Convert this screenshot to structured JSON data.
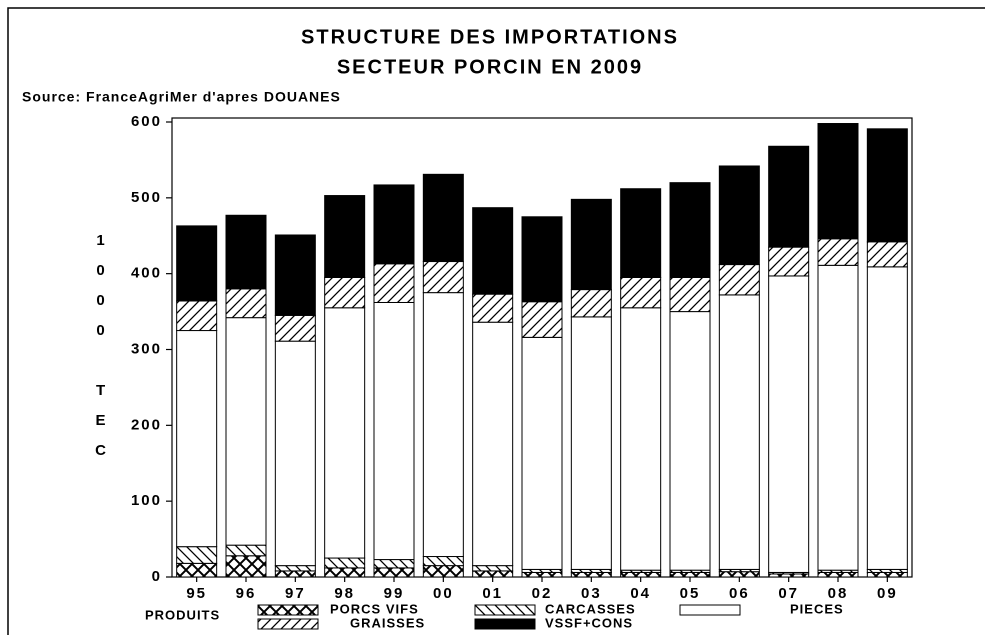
{
  "chart_data": {
    "type": "stacked_bar",
    "title": "STRUCTURE DES IMPORTATIONS",
    "subtitle": "SECTEUR PORCIN EN 2009",
    "source": "Source: FranceAgriMer d'apres DOUANES",
    "y_label": "1000 TEC",
    "legend_title": "PRODUITS",
    "categories": [
      "95",
      "96",
      "97",
      "98",
      "99",
      "00",
      "01",
      "02",
      "03",
      "04",
      "05",
      "06",
      "07",
      "08",
      "09"
    ],
    "series": [
      {
        "name": "PORCS VIFS",
        "color": "#000000",
        "pattern": "crosshatch",
        "values": [
          18,
          28,
          8,
          12,
          12,
          15,
          8,
          6,
          6,
          6,
          6,
          7,
          4,
          6,
          6
        ]
      },
      {
        "name": "CARCASSES",
        "color": "#000000",
        "pattern": "backslash",
        "values": [
          22,
          14,
          7,
          13,
          11,
          12,
          7,
          4,
          4,
          3,
          3,
          3,
          2,
          3,
          4
        ]
      },
      {
        "name": "PIECES",
        "color": "#ffffff",
        "pattern": "solid",
        "values": [
          285,
          300,
          296,
          330,
          339,
          348,
          321,
          306,
          333,
          346,
          341,
          362,
          391,
          402,
          399
        ]
      },
      {
        "name": "GRAISSES",
        "color": "#000000",
        "pattern": "slash",
        "values": [
          39,
          38,
          34,
          40,
          51,
          41,
          37,
          47,
          36,
          40,
          45,
          40,
          38,
          35,
          33
        ]
      },
      {
        "name": "VSSF+CONS",
        "color": "#000000",
        "pattern": "solid",
        "values": [
          99,
          97,
          106,
          108,
          104,
          115,
          114,
          112,
          119,
          117,
          125,
          130,
          133,
          152,
          149
        ]
      }
    ],
    "ylim": [
      0,
      600
    ],
    "yticks": [
      0,
      100,
      200,
      300,
      400,
      500,
      600
    ]
  }
}
